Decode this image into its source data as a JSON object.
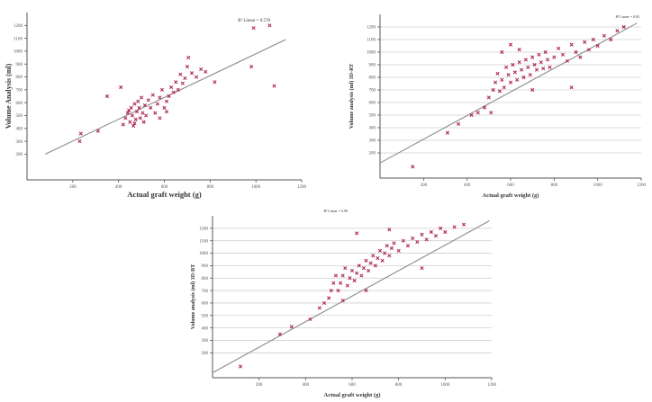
{
  "chart_data": [
    {
      "type": "scatter",
      "title": "",
      "annotation": "R² Linear = 0.578",
      "xlabel": "Actual graft weight (g)",
      "ylabel": "Volume Analysis (ml)",
      "xlim": [
        0,
        1200
      ],
      "ylim": [
        0,
        1300
      ],
      "x_ticks": [
        200,
        400,
        600,
        800,
        1000,
        1200
      ],
      "y_ticks": [
        200,
        300,
        400,
        500,
        600,
        700,
        800,
        900,
        1000,
        1100,
        1200
      ],
      "grid": false,
      "fit_line": {
        "x": [
          80,
          1130
        ],
        "y": [
          200,
          1090
        ]
      },
      "points": [
        {
          "x": 230,
          "y": 300
        },
        {
          "x": 235,
          "y": 360
        },
        {
          "x": 310,
          "y": 380
        },
        {
          "x": 350,
          "y": 650
        },
        {
          "x": 410,
          "y": 720
        },
        {
          "x": 420,
          "y": 430
        },
        {
          "x": 430,
          "y": 480
        },
        {
          "x": 440,
          "y": 520
        },
        {
          "x": 445,
          "y": 540
        },
        {
          "x": 450,
          "y": 450
        },
        {
          "x": 455,
          "y": 560
        },
        {
          "x": 460,
          "y": 500
        },
        {
          "x": 465,
          "y": 420
        },
        {
          "x": 470,
          "y": 590
        },
        {
          "x": 475,
          "y": 470
        },
        {
          "x": 480,
          "y": 530
        },
        {
          "x": 485,
          "y": 610
        },
        {
          "x": 490,
          "y": 560
        },
        {
          "x": 495,
          "y": 480
        },
        {
          "x": 500,
          "y": 640
        },
        {
          "x": 505,
          "y": 520
        },
        {
          "x": 510,
          "y": 450
        },
        {
          "x": 515,
          "y": 580
        },
        {
          "x": 520,
          "y": 500
        },
        {
          "x": 530,
          "y": 620
        },
        {
          "x": 540,
          "y": 560
        },
        {
          "x": 550,
          "y": 660
        },
        {
          "x": 560,
          "y": 520
        },
        {
          "x": 570,
          "y": 590
        },
        {
          "x": 580,
          "y": 640
        },
        {
          "x": 590,
          "y": 700
        },
        {
          "x": 600,
          "y": 560
        },
        {
          "x": 610,
          "y": 610
        },
        {
          "x": 620,
          "y": 650
        },
        {
          "x": 630,
          "y": 720
        },
        {
          "x": 640,
          "y": 680
        },
        {
          "x": 650,
          "y": 760
        },
        {
          "x": 660,
          "y": 700
        },
        {
          "x": 670,
          "y": 820
        },
        {
          "x": 680,
          "y": 750
        },
        {
          "x": 690,
          "y": 790
        },
        {
          "x": 700,
          "y": 880
        },
        {
          "x": 705,
          "y": 950
        },
        {
          "x": 720,
          "y": 830
        },
        {
          "x": 740,
          "y": 800
        },
        {
          "x": 760,
          "y": 860
        },
        {
          "x": 780,
          "y": 840
        },
        {
          "x": 820,
          "y": 760
        },
        {
          "x": 980,
          "y": 880
        },
        {
          "x": 990,
          "y": 1180
        },
        {
          "x": 1060,
          "y": 1200
        },
        {
          "x": 1080,
          "y": 730
        },
        {
          "x": 580,
          "y": 480
        },
        {
          "x": 610,
          "y": 530
        },
        {
          "x": 470,
          "y": 440
        }
      ]
    },
    {
      "type": "scatter",
      "title": "",
      "annotation": "R² Linear = 0.83",
      "xlabel": "Actual graft weight (g)",
      "ylabel": "Volume analysis (ml) 3D-RT",
      "xlim": [
        0,
        1200
      ],
      "ylim": [
        0,
        1300
      ],
      "x_ticks": [
        200,
        400,
        600,
        800,
        1000,
        1200
      ],
      "y_ticks": [
        200,
        300,
        400,
        500,
        600,
        700,
        800,
        900,
        1000,
        1100,
        1200
      ],
      "grid": true,
      "fit_line": {
        "x": [
          0,
          1180
        ],
        "y": [
          120,
          1230
        ]
      },
      "points": [
        {
          "x": 150,
          "y": 90
        },
        {
          "x": 310,
          "y": 360
        },
        {
          "x": 360,
          "y": 430
        },
        {
          "x": 420,
          "y": 500
        },
        {
          "x": 450,
          "y": 520
        },
        {
          "x": 480,
          "y": 560
        },
        {
          "x": 500,
          "y": 640
        },
        {
          "x": 510,
          "y": 520
        },
        {
          "x": 520,
          "y": 700
        },
        {
          "x": 530,
          "y": 760
        },
        {
          "x": 540,
          "y": 830
        },
        {
          "x": 550,
          "y": 690
        },
        {
          "x": 560,
          "y": 780
        },
        {
          "x": 570,
          "y": 720
        },
        {
          "x": 580,
          "y": 880
        },
        {
          "x": 590,
          "y": 820
        },
        {
          "x": 600,
          "y": 760
        },
        {
          "x": 610,
          "y": 900
        },
        {
          "x": 620,
          "y": 840
        },
        {
          "x": 630,
          "y": 780
        },
        {
          "x": 640,
          "y": 920
        },
        {
          "x": 650,
          "y": 860
        },
        {
          "x": 660,
          "y": 800
        },
        {
          "x": 670,
          "y": 940
        },
        {
          "x": 680,
          "y": 880
        },
        {
          "x": 690,
          "y": 820
        },
        {
          "x": 700,
          "y": 960
        },
        {
          "x": 710,
          "y": 900
        },
        {
          "x": 720,
          "y": 860
        },
        {
          "x": 730,
          "y": 980
        },
        {
          "x": 740,
          "y": 920
        },
        {
          "x": 750,
          "y": 870
        },
        {
          "x": 760,
          "y": 1000
        },
        {
          "x": 770,
          "y": 940
        },
        {
          "x": 780,
          "y": 880
        },
        {
          "x": 800,
          "y": 960
        },
        {
          "x": 820,
          "y": 1030
        },
        {
          "x": 840,
          "y": 980
        },
        {
          "x": 860,
          "y": 930
        },
        {
          "x": 880,
          "y": 1060
        },
        {
          "x": 900,
          "y": 1000
        },
        {
          "x": 920,
          "y": 960
        },
        {
          "x": 940,
          "y": 1080
        },
        {
          "x": 960,
          "y": 1020
        },
        {
          "x": 980,
          "y": 1100
        },
        {
          "x": 1000,
          "y": 1050
        },
        {
          "x": 1030,
          "y": 1130
        },
        {
          "x": 1060,
          "y": 1100
        },
        {
          "x": 1090,
          "y": 1170
        },
        {
          "x": 1120,
          "y": 1200
        },
        {
          "x": 560,
          "y": 1000
        },
        {
          "x": 600,
          "y": 1060
        },
        {
          "x": 640,
          "y": 1020
        },
        {
          "x": 880,
          "y": 720
        },
        {
          "x": 700,
          "y": 700
        }
      ]
    },
    {
      "type": "scatter",
      "title": "",
      "annotation": "R² Linear = 0.90",
      "xlabel": "Actual graft weight (g)",
      "ylabel": "Volume analysis (ml) 3D-RT",
      "xlim": [
        0,
        1200
      ],
      "ylim": [
        0,
        1300
      ],
      "x_ticks": [
        200,
        400,
        600,
        800,
        1000,
        1200
      ],
      "y_ticks": [
        200,
        300,
        400,
        500,
        600,
        700,
        800,
        900,
        1000,
        1100,
        1200
      ],
      "grid": true,
      "fit_line": {
        "x": [
          0,
          1190
        ],
        "y": [
          40,
          1260
        ]
      },
      "points": [
        {
          "x": 120,
          "y": 90
        },
        {
          "x": 290,
          "y": 350
        },
        {
          "x": 340,
          "y": 410
        },
        {
          "x": 420,
          "y": 470
        },
        {
          "x": 460,
          "y": 560
        },
        {
          "x": 480,
          "y": 600
        },
        {
          "x": 500,
          "y": 640
        },
        {
          "x": 510,
          "y": 700
        },
        {
          "x": 520,
          "y": 760
        },
        {
          "x": 530,
          "y": 820
        },
        {
          "x": 540,
          "y": 700
        },
        {
          "x": 550,
          "y": 760
        },
        {
          "x": 560,
          "y": 820
        },
        {
          "x": 570,
          "y": 880
        },
        {
          "x": 580,
          "y": 740
        },
        {
          "x": 590,
          "y": 800
        },
        {
          "x": 600,
          "y": 860
        },
        {
          "x": 610,
          "y": 780
        },
        {
          "x": 620,
          "y": 840
        },
        {
          "x": 630,
          "y": 900
        },
        {
          "x": 640,
          "y": 820
        },
        {
          "x": 650,
          "y": 880
        },
        {
          "x": 660,
          "y": 940
        },
        {
          "x": 670,
          "y": 860
        },
        {
          "x": 680,
          "y": 920
        },
        {
          "x": 690,
          "y": 980
        },
        {
          "x": 700,
          "y": 900
        },
        {
          "x": 710,
          "y": 960
        },
        {
          "x": 720,
          "y": 1020
        },
        {
          "x": 730,
          "y": 940
        },
        {
          "x": 740,
          "y": 1000
        },
        {
          "x": 750,
          "y": 1060
        },
        {
          "x": 760,
          "y": 980
        },
        {
          "x": 770,
          "y": 1040
        },
        {
          "x": 780,
          "y": 1080
        },
        {
          "x": 800,
          "y": 1020
        },
        {
          "x": 820,
          "y": 1100
        },
        {
          "x": 840,
          "y": 1060
        },
        {
          "x": 860,
          "y": 1120
        },
        {
          "x": 880,
          "y": 1090
        },
        {
          "x": 900,
          "y": 1150
        },
        {
          "x": 920,
          "y": 1110
        },
        {
          "x": 940,
          "y": 1170
        },
        {
          "x": 960,
          "y": 1140
        },
        {
          "x": 980,
          "y": 1200
        },
        {
          "x": 1000,
          "y": 1170
        },
        {
          "x": 1040,
          "y": 1210
        },
        {
          "x": 1080,
          "y": 1230
        },
        {
          "x": 620,
          "y": 1160
        },
        {
          "x": 760,
          "y": 1190
        },
        {
          "x": 560,
          "y": 620
        },
        {
          "x": 900,
          "y": 880
        },
        {
          "x": 660,
          "y": 700
        }
      ]
    }
  ]
}
